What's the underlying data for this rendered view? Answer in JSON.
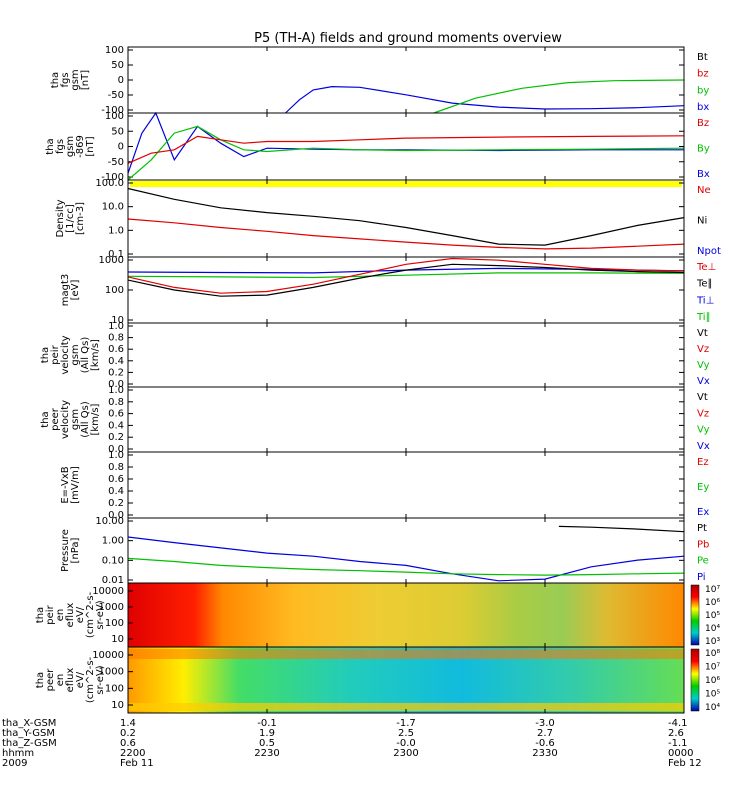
{
  "title": "P5 (TH-A) fields and ground moments overview",
  "colors": {
    "black": "#000000",
    "red": "#e00000",
    "green": "#00c000",
    "blue": "#0000e0",
    "yellow": "#ffff00"
  },
  "time_axis": {
    "ticks": [
      "2200",
      "2230",
      "2300",
      "2330",
      "0000"
    ],
    "ephemeris": [
      {
        "label": "tha_X-GSM",
        "values": [
          "1.4",
          "-0.1",
          "-1.7",
          "-3.0",
          "-4.1"
        ]
      },
      {
        "label": "tha_Y-GSM",
        "values": [
          "0.2",
          "1.9",
          "2.5",
          "2.7",
          "2.6"
        ]
      },
      {
        "label": "tha_Z-GSM",
        "values": [
          "0.6",
          "0.5",
          "-0.0",
          "-0.6",
          "-1.1"
        ]
      },
      {
        "label": "hhmm",
        "values": [
          "2200",
          "2230",
          "2300",
          "2330",
          "0000"
        ]
      },
      {
        "label": "2009",
        "values": [
          "Feb 11",
          "",
          "",
          "",
          "Feb 12"
        ]
      }
    ]
  },
  "chart_data": [
    {
      "type": "line",
      "id": "fgs",
      "ylabel": [
        "tha",
        "fgs",
        "gsm",
        "[nT]"
      ],
      "yticks": [
        "100",
        "50",
        "0",
        "-50",
        "-100"
      ],
      "ylim": [
        -100,
        100
      ],
      "legend": [
        {
          "name": "Bt",
          "color": "black"
        },
        {
          "name": "bz",
          "color": "red"
        },
        {
          "name": "by",
          "color": "green"
        },
        {
          "name": "bx",
          "color": "blue"
        }
      ],
      "series": [
        {
          "name": "bx",
          "color": "blue",
          "x": [
            "22:34",
            "22:37",
            "22:40",
            "22:44",
            "22:50",
            "23:00",
            "23:10",
            "23:20",
            "23:30",
            "23:40",
            "23:50",
            "00:00"
          ],
          "y": [
            -100,
            -60,
            -30,
            -20,
            -22,
            -45,
            -70,
            -82,
            -88,
            -87,
            -84,
            -78
          ]
        },
        {
          "name": "by",
          "color": "green",
          "x": [
            "23:06",
            "23:15",
            "23:25",
            "23:35",
            "23:45",
            "00:00"
          ],
          "y": [
            -100,
            -55,
            -25,
            -8,
            -2,
            0
          ]
        }
      ]
    },
    {
      "type": "line",
      "id": "fgs-869",
      "ylabel": [
        "tha",
        "fgs",
        "gsm",
        "-869",
        "[nT]"
      ],
      "yticks": [
        "100",
        "50",
        "0",
        "-50",
        "-100"
      ],
      "ylim": [
        -100,
        100
      ],
      "legend": [
        {
          "name": "Bz",
          "color": "red"
        },
        {
          "name": "By",
          "color": "green"
        },
        {
          "name": "Bx",
          "color": "blue"
        }
      ],
      "series": [
        {
          "name": "Bx",
          "color": "blue",
          "x": [
            "22:00",
            "22:03",
            "22:06",
            "22:10",
            "22:15",
            "22:20",
            "22:25",
            "22:30",
            "22:40",
            "22:50",
            "23:00",
            "23:20",
            "23:40",
            "00:00"
          ],
          "y": [
            -80,
            40,
            100,
            -40,
            60,
            10,
            -30,
            -5,
            -8,
            -10,
            -10,
            -12,
            -10,
            -10
          ]
        },
        {
          "name": "By",
          "color": "green",
          "x": [
            "22:00",
            "22:05",
            "22:10",
            "22:15",
            "22:20",
            "22:25",
            "22:30",
            "22:40",
            "22:50",
            "23:00",
            "23:20",
            "23:40",
            "00:00"
          ],
          "y": [
            -100,
            -40,
            40,
            60,
            20,
            -10,
            -15,
            -5,
            -10,
            -12,
            -10,
            -8,
            -5
          ]
        },
        {
          "name": "Bz",
          "color": "red",
          "x": [
            "22:00",
            "22:05",
            "22:10",
            "22:15",
            "22:20",
            "22:25",
            "22:30",
            "22:40",
            "22:50",
            "23:00",
            "23:20",
            "23:40",
            "00:00"
          ],
          "y": [
            -50,
            -20,
            -10,
            30,
            20,
            10,
            15,
            15,
            20,
            25,
            28,
            30,
            32
          ]
        }
      ]
    },
    {
      "type": "line",
      "id": "density",
      "ylabel": [
        "Density",
        "[1/cc]",
        "[cm-3]"
      ],
      "yticks": [
        "100.0",
        "10.0",
        "1.0",
        "0.1"
      ],
      "yscale": "log",
      "ylim": [
        0.05,
        200
      ],
      "legend": [
        {
          "name": "Ne",
          "color": "red"
        },
        {
          "name": "Ni",
          "color": "black"
        },
        {
          "name": "Npot",
          "color": "blue"
        }
      ],
      "series": [
        {
          "name": "Ni",
          "color": "black",
          "x": [
            "22:00",
            "22:10",
            "22:20",
            "22:30",
            "22:40",
            "22:50",
            "23:00",
            "23:10",
            "23:20",
            "23:30",
            "23:40",
            "23:50",
            "00:00"
          ],
          "y": [
            80,
            25,
            10,
            6,
            4,
            2.5,
            1.2,
            0.5,
            0.2,
            0.18,
            0.5,
            1.5,
            3.5
          ]
        },
        {
          "name": "Ne",
          "color": "red",
          "x": [
            "22:00",
            "22:10",
            "22:20",
            "22:30",
            "22:40",
            "22:50",
            "23:00",
            "23:10",
            "23:20",
            "23:30",
            "23:40",
            "23:50",
            "00:00"
          ],
          "y": [
            3,
            2,
            1.2,
            0.8,
            0.5,
            0.35,
            0.25,
            0.18,
            0.14,
            0.12,
            0.13,
            0.16,
            0.2
          ]
        }
      ]
    },
    {
      "type": "line",
      "id": "magt3",
      "ylabel": [
        "magt3",
        "[eV]"
      ],
      "yticks": [
        "1000",
        "100",
        "10"
      ],
      "yscale": "log",
      "ylim": [
        10,
        1000
      ],
      "legend": [
        {
          "name": "Te⊥",
          "color": "red"
        },
        {
          "name": "Te∥",
          "color": "black"
        },
        {
          "name": "Ti⊥",
          "color": "blue"
        },
        {
          "name": "Ti∥",
          "color": "green"
        }
      ],
      "series": [
        {
          "name": "Ti⊥",
          "color": "blue",
          "x": [
            "22:00",
            "22:20",
            "22:40",
            "23:00",
            "23:20",
            "23:40",
            "00:00"
          ],
          "y": [
            350,
            340,
            330,
            400,
            450,
            420,
            380
          ]
        },
        {
          "name": "Ti∥",
          "color": "green",
          "x": [
            "22:00",
            "22:20",
            "22:40",
            "23:00",
            "23:20",
            "23:40",
            "00:00"
          ],
          "y": [
            260,
            250,
            240,
            280,
            330,
            330,
            320
          ]
        },
        {
          "name": "Te⊥",
          "color": "red",
          "x": [
            "22:00",
            "22:10",
            "22:20",
            "22:30",
            "22:40",
            "22:50",
            "23:00",
            "23:10",
            "23:20",
            "23:30",
            "23:40",
            "23:50",
            "00:00"
          ],
          "y": [
            250,
            120,
            80,
            90,
            150,
            300,
            600,
            900,
            800,
            600,
            450,
            400,
            380
          ]
        },
        {
          "name": "Te∥",
          "color": "black",
          "x": [
            "22:00",
            "22:10",
            "22:20",
            "22:30",
            "22:40",
            "22:50",
            "23:00",
            "23:10",
            "23:20",
            "23:30",
            "23:40",
            "23:50",
            "00:00"
          ],
          "y": [
            200,
            100,
            65,
            70,
            120,
            230,
            400,
            600,
            550,
            480,
            400,
            360,
            340
          ]
        }
      ]
    },
    {
      "type": "line",
      "id": "peir-velocity",
      "ylabel": [
        "tha",
        "peir",
        "velocity",
        "gsm",
        "(All Qs)",
        "[km/s]"
      ],
      "yticks": [
        "1.0",
        "0.8",
        "0.6",
        "0.4",
        "0.2",
        "0.0"
      ],
      "ylim": [
        0,
        1
      ],
      "legend": [
        {
          "name": "Vt",
          "color": "black"
        },
        {
          "name": "Vz",
          "color": "red"
        },
        {
          "name": "Vy",
          "color": "green"
        },
        {
          "name": "Vx",
          "color": "blue"
        }
      ],
      "series": []
    },
    {
      "type": "line",
      "id": "peer-velocity",
      "ylabel": [
        "tha",
        "peer",
        "velocity",
        "gsm",
        "(All Qs)",
        "[km/s]"
      ],
      "yticks": [
        "1.0",
        "0.8",
        "0.6",
        "0.4",
        "0.2",
        "0.0"
      ],
      "ylim": [
        0,
        1
      ],
      "legend": [
        {
          "name": "Vt",
          "color": "black"
        },
        {
          "name": "Vz",
          "color": "red"
        },
        {
          "name": "Vy",
          "color": "green"
        },
        {
          "name": "Vx",
          "color": "blue"
        }
      ],
      "series": []
    },
    {
      "type": "line",
      "id": "efield",
      "ylabel": [
        "E=-VxB",
        "[mV/m]"
      ],
      "yticks": [
        "1.0",
        "0.8",
        "0.6",
        "0.4",
        "0.2",
        "0.0"
      ],
      "ylim": [
        0,
        1
      ],
      "legend": [
        {
          "name": "Ez",
          "color": "red"
        },
        {
          "name": "Ey",
          "color": "green"
        },
        {
          "name": "Ex",
          "color": "blue"
        }
      ],
      "series": []
    },
    {
      "type": "line",
      "id": "pressure",
      "ylabel": [
        "Pressure",
        "[nPa]"
      ],
      "yticks": [
        "10.00",
        "1.00",
        "0.10",
        "0.01"
      ],
      "yscale": "log",
      "ylim": [
        0.006,
        30
      ],
      "legend": [
        {
          "name": "Pt",
          "color": "black"
        },
        {
          "name": "Pb",
          "color": "red"
        },
        {
          "name": "Pe",
          "color": "green"
        },
        {
          "name": "Pi",
          "color": "blue"
        }
      ],
      "series": [
        {
          "name": "Pt",
          "color": "black",
          "x": [
            "23:33",
            "23:40",
            "23:50",
            "00:00"
          ],
          "y": [
            10,
            9,
            7,
            5
          ]
        },
        {
          "name": "Pi",
          "color": "blue",
          "x": [
            "22:00",
            "22:10",
            "22:20",
            "22:30",
            "22:40",
            "22:50",
            "23:00",
            "23:10",
            "23:20",
            "23:30",
            "23:40",
            "23:50",
            "00:00"
          ],
          "y": [
            2.5,
            1.2,
            0.6,
            0.3,
            0.2,
            0.1,
            0.06,
            0.02,
            0.008,
            0.01,
            0.05,
            0.12,
            0.2
          ]
        },
        {
          "name": "Pe",
          "color": "green",
          "x": [
            "22:00",
            "22:10",
            "22:20",
            "22:30",
            "22:40",
            "22:50",
            "23:00",
            "23:10",
            "23:20",
            "23:30",
            "23:40",
            "23:50",
            "00:00"
          ],
          "y": [
            0.15,
            0.1,
            0.06,
            0.045,
            0.035,
            0.03,
            0.025,
            0.02,
            0.018,
            0.017,
            0.018,
            0.02,
            0.022
          ]
        }
      ]
    },
    {
      "type": "heatmap",
      "id": "peir-en-eflux",
      "ylabel": [
        "tha",
        "peir",
        "en",
        "eflux",
        "eV/",
        "(cm^2-s-",
        "sr-eV)"
      ],
      "yticks": [
        "10000",
        "1000",
        "100",
        "10"
      ],
      "colorbar": [
        "10⁷",
        "10⁶",
        "10⁵",
        "10⁴",
        "10³"
      ]
    },
    {
      "type": "heatmap",
      "id": "peer-en-eflux",
      "ylabel": [
        "tha",
        "peer",
        "en",
        "eflux",
        "eV/",
        "(cm^2-s-",
        "sr-eV)"
      ],
      "yticks": [
        "10000",
        "1000",
        "100",
        "10"
      ],
      "colorbar": [
        "10⁸",
        "10⁷",
        "10⁶",
        "10⁵",
        "10⁴"
      ]
    }
  ]
}
